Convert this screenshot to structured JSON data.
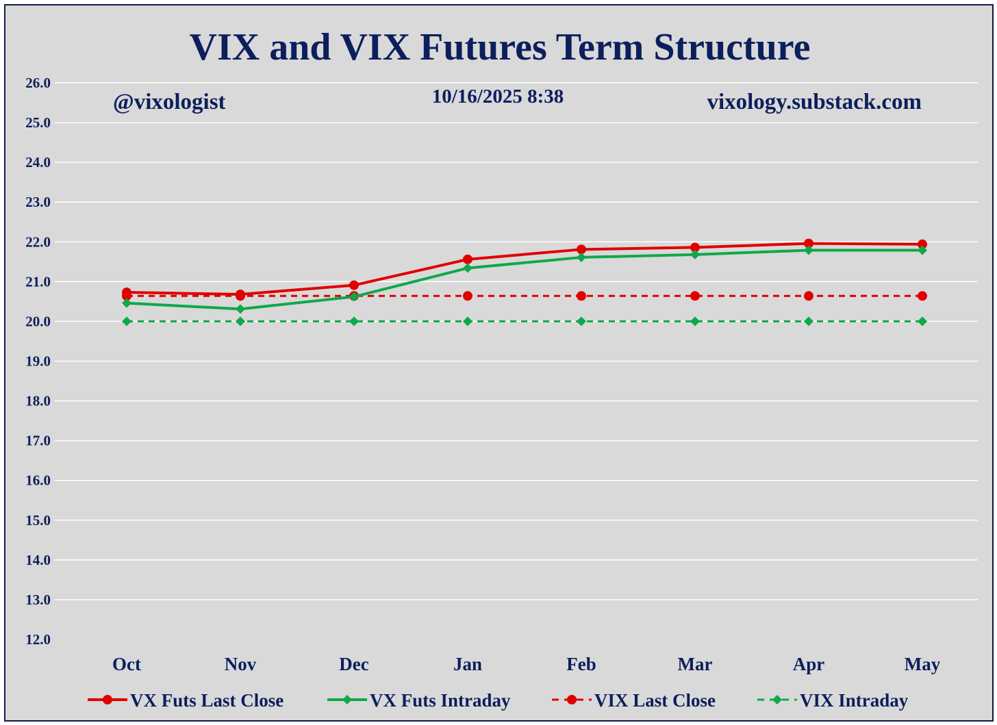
{
  "chart_data": {
    "type": "line",
    "title": "VIX and VIX Futures Term Structure",
    "annotations": {
      "handle": "@vixologist",
      "timestamp": "10/16/2025 8:38",
      "site": "vixology.substack.com"
    },
    "categories": [
      "Oct",
      "Nov",
      "Dec",
      "Jan",
      "Feb",
      "Mar",
      "Apr",
      "May"
    ],
    "ylim": [
      12.0,
      26.0
    ],
    "yticks": [
      "12.0",
      "13.0",
      "14.0",
      "15.0",
      "16.0",
      "17.0",
      "18.0",
      "19.0",
      "20.0",
      "21.0",
      "22.0",
      "23.0",
      "24.0",
      "25.0",
      "26.0"
    ],
    "grid": true,
    "legend_position": "bottom",
    "xlabel": "",
    "ylabel": "",
    "series": [
      {
        "name": "VX Futs Last Close",
        "color": "#e00000",
        "marker": "circle",
        "dash": false,
        "values": [
          20.73,
          20.68,
          20.91,
          21.56,
          21.81,
          21.86,
          21.96,
          21.94
        ]
      },
      {
        "name": "VX Futs Intraday",
        "color": "#10a84a",
        "marker": "diamond",
        "dash": false,
        "values": [
          20.46,
          20.31,
          20.62,
          21.34,
          21.61,
          21.68,
          21.79,
          21.79
        ]
      },
      {
        "name": "VIX Last Close",
        "color": "#e00000",
        "marker": "circle",
        "dash": true,
        "values": [
          20.64,
          20.64,
          20.64,
          20.64,
          20.64,
          20.64,
          20.64,
          20.64
        ]
      },
      {
        "name": "VIX Intraday",
        "color": "#10a84a",
        "marker": "diamond",
        "dash": true,
        "values": [
          20.0,
          20.0,
          20.0,
          20.0,
          20.0,
          20.0,
          20.0,
          20.0
        ]
      }
    ]
  }
}
